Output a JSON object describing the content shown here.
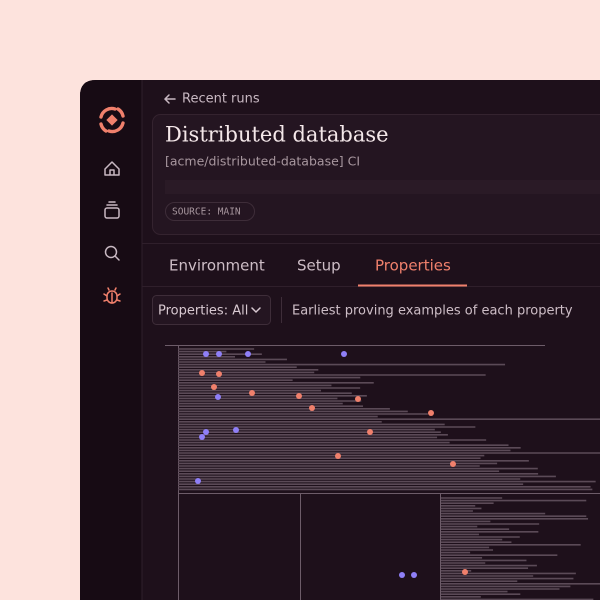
{
  "nav": {
    "back": "Recent runs"
  },
  "header": {
    "title": "Distributed database",
    "subtitle": "[acme/distributed-database] CI",
    "badge": "SOURCE: MAIN"
  },
  "tabs": [
    "Environment",
    "Setup",
    "Properties"
  ],
  "filter": {
    "label": "Properties: All",
    "description": "Earliest proving examples of each property"
  }
}
